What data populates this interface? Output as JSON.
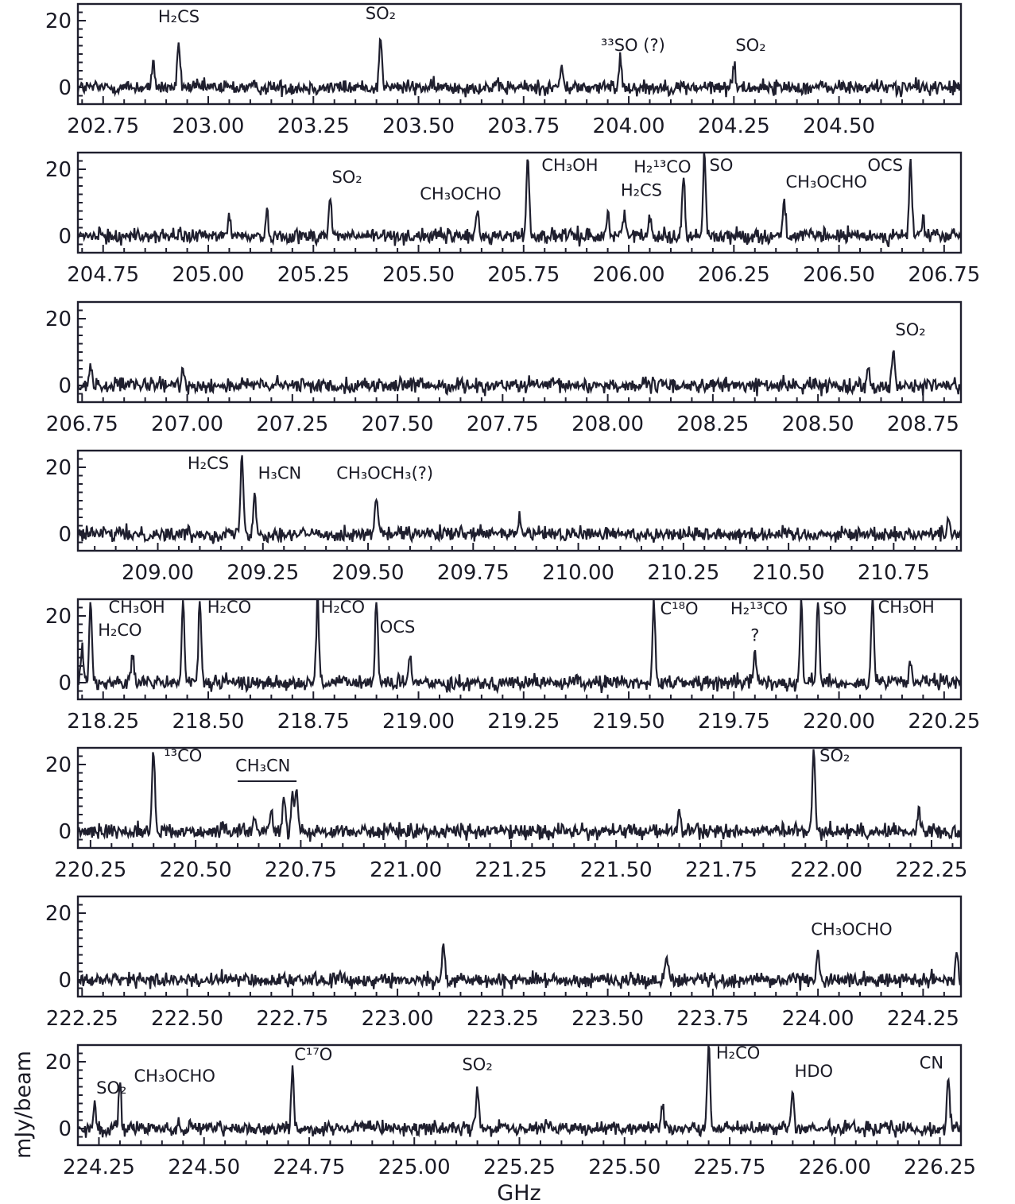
{
  "chart_data": {
    "type": "line",
    "xlabel": "GHz",
    "ylabel": "mJy/beam",
    "line_color": "#1f1f2e",
    "panels": [
      {
        "xlim": [
          202.69,
          204.79
        ],
        "ylim": [
          -5,
          25
        ],
        "xticks": [
          "202.75",
          "203.00",
          "203.25",
          "203.50",
          "203.75",
          "204.00",
          "204.25",
          "204.50"
        ],
        "yticks": [
          "0",
          "20"
        ],
        "peaks": [
          {
            "x": 202.87,
            "y": 7
          },
          {
            "x": 202.93,
            "y": 13.5
          },
          {
            "x": 203.41,
            "y": 15.5
          },
          {
            "x": 203.84,
            "y": 6
          },
          {
            "x": 203.98,
            "y": 9
          },
          {
            "x": 204.25,
            "y": 7
          }
        ],
        "labels": [
          {
            "text": "H₂CS",
            "x": 202.93,
            "y": 19.5
          },
          {
            "text": "SO₂",
            "x": 203.41,
            "y": 20.5
          },
          {
            "text": "³³SO (?)",
            "x": 204.01,
            "y": 11
          },
          {
            "text": "SO₂",
            "x": 204.29,
            "y": 11
          }
        ]
      },
      {
        "xlim": [
          204.69,
          206.79
        ],
        "ylim": [
          -5,
          25
        ],
        "xticks": [
          "204.75",
          "205.00",
          "205.25",
          "205.50",
          "205.75",
          "206.00",
          "206.25",
          "206.50",
          "206.75"
        ],
        "yticks": [
          "0",
          "20"
        ],
        "peaks": [
          {
            "x": 205.05,
            "y": 7
          },
          {
            "x": 205.14,
            "y": 6
          },
          {
            "x": 205.29,
            "y": 12
          },
          {
            "x": 205.64,
            "y": 7
          },
          {
            "x": 205.76,
            "y": 25
          },
          {
            "x": 205.95,
            "y": 7
          },
          {
            "x": 205.99,
            "y": 9
          },
          {
            "x": 206.05,
            "y": 8
          },
          {
            "x": 206.13,
            "y": 18
          },
          {
            "x": 206.18,
            "y": 25
          },
          {
            "x": 206.37,
            "y": 11
          },
          {
            "x": 206.67,
            "y": 23
          },
          {
            "x": 206.7,
            "y": 6
          }
        ],
        "labels": [
          {
            "text": "SO₂",
            "x": 205.33,
            "y": 16
          },
          {
            "text": "CH₃OCHO",
            "x": 205.6,
            "y": 11
          },
          {
            "text": "CH₃OH",
            "x": 205.86,
            "y": 19.5
          },
          {
            "text": "H₂¹³CO",
            "x": 206.08,
            "y": 19
          },
          {
            "text": "H₂CS",
            "x": 206.03,
            "y": 12
          },
          {
            "text": "SO",
            "x": 206.22,
            "y": 19.5
          },
          {
            "text": "CH₃OCHO",
            "x": 206.47,
            "y": 14.5
          },
          {
            "text": "OCS",
            "x": 206.61,
            "y": 19.5
          }
        ]
      },
      {
        "xlim": [
          206.74,
          208.84
        ],
        "ylim": [
          -5,
          25
        ],
        "xticks": [
          "206.75",
          "207.00",
          "207.25",
          "207.50",
          "207.75",
          "208.00",
          "208.25",
          "208.50",
          "208.75"
        ],
        "yticks": [
          "0",
          "20"
        ],
        "peaks": [
          {
            "x": 206.77,
            "y": 6
          },
          {
            "x": 206.99,
            "y": 5
          },
          {
            "x": 208.68,
            "y": 11
          },
          {
            "x": 208.62,
            "y": 5
          }
        ],
        "labels": [
          {
            "text": "SO₂",
            "x": 208.72,
            "y": 15
          }
        ]
      },
      {
        "xlim": [
          208.81,
          210.91
        ],
        "ylim": [
          -5,
          25
        ],
        "xticks": [
          "209.00",
          "209.25",
          "209.50",
          "209.75",
          "210.00",
          "210.25",
          "210.50",
          "210.75"
        ],
        "yticks": [
          "0",
          "20"
        ],
        "peaks": [
          {
            "x": 209.2,
            "y": 25
          },
          {
            "x": 209.23,
            "y": 13.5
          },
          {
            "x": 209.52,
            "y": 12.5
          },
          {
            "x": 209.86,
            "y": 5
          },
          {
            "x": 210.88,
            "y": 6
          }
        ],
        "labels": [
          {
            "text": "H₂CS",
            "x": 209.12,
            "y": 19.5
          },
          {
            "text": "H₃CN",
            "x": 209.29,
            "y": 16.5
          },
          {
            "text": "CH₃OCH₃(?)",
            "x": 209.54,
            "y": 16.5
          }
        ]
      },
      {
        "xlim": [
          218.19,
          220.29
        ],
        "ylim": [
          -5,
          25
        ],
        "xticks": [
          "218.25",
          "218.50",
          "218.75",
          "219.00",
          "219.25",
          "219.50",
          "219.75",
          "220.00",
          "220.25"
        ],
        "yticks": [
          "0",
          "20"
        ],
        "peaks": [
          {
            "x": 218.2,
            "y": 10
          },
          {
            "x": 218.22,
            "y": 25
          },
          {
            "x": 218.32,
            "y": 8
          },
          {
            "x": 218.44,
            "y": 25
          },
          {
            "x": 218.48,
            "y": 25
          },
          {
            "x": 218.76,
            "y": 25
          },
          {
            "x": 218.9,
            "y": 25
          },
          {
            "x": 218.98,
            "y": 7
          },
          {
            "x": 219.56,
            "y": 25
          },
          {
            "x": 219.8,
            "y": 10.5
          },
          {
            "x": 219.91,
            "y": 25
          },
          {
            "x": 219.95,
            "y": 25
          },
          {
            "x": 220.08,
            "y": 25
          },
          {
            "x": 220.17,
            "y": 7
          }
        ],
        "labels": [
          {
            "text": "CH₃OH",
            "x": 218.33,
            "y": 21
          },
          {
            "text": "H₂CO",
            "x": 218.29,
            "y": 14
          },
          {
            "text": "H₂CO",
            "x": 218.55,
            "y": 21
          },
          {
            "text": "H₂CO",
            "x": 218.82,
            "y": 21
          },
          {
            "text": "OCS",
            "x": 218.95,
            "y": 15
          },
          {
            "text": "C¹⁸O",
            "x": 219.62,
            "y": 20.5
          },
          {
            "text": "H₂¹³CO",
            "x": 219.81,
            "y": 20.5
          },
          {
            "text": "?",
            "x": 219.8,
            "y": 12.5
          },
          {
            "text": "SO",
            "x": 219.99,
            "y": 20.5
          },
          {
            "text": "CH₃OH",
            "x": 220.16,
            "y": 21
          }
        ]
      },
      {
        "xlim": [
          220.22,
          222.32
        ],
        "ylim": [
          -5,
          25
        ],
        "xticks": [
          "220.25",
          "220.50",
          "220.75",
          "221.00",
          "221.25",
          "221.50",
          "221.75",
          "222.00",
          "222.25"
        ],
        "yticks": [
          "0",
          "20"
        ],
        "peaks": [
          {
            "x": 220.4,
            "y": 25
          },
          {
            "x": 220.64,
            "y": 5
          },
          {
            "x": 220.68,
            "y": 8
          },
          {
            "x": 220.71,
            "y": 10
          },
          {
            "x": 220.73,
            "y": 11.5
          },
          {
            "x": 220.74,
            "y": 13.5
          },
          {
            "x": 221.65,
            "y": 6
          },
          {
            "x": 221.97,
            "y": 25
          },
          {
            "x": 222.22,
            "y": 7
          }
        ],
        "labels": [
          {
            "text": "¹³CO",
            "x": 220.47,
            "y": 21
          },
          {
            "text": "CH₃CN",
            "x": 220.66,
            "y": 18
          },
          {
            "text": "SO₂",
            "x": 222.02,
            "y": 21
          }
        ],
        "brackets": [
          {
            "x0": 220.6,
            "x1": 220.74,
            "y": 15
          }
        ]
      },
      {
        "xlim": [
          222.24,
          224.34
        ],
        "ylim": [
          -5,
          25
        ],
        "xticks": [
          "222.25",
          "222.50",
          "222.75",
          "223.00",
          "223.25",
          "223.50",
          "223.75",
          "224.00",
          "224.25"
        ],
        "yticks": [
          "0",
          "20"
        ],
        "peaks": [
          {
            "x": 223.11,
            "y": 10
          },
          {
            "x": 223.64,
            "y": 7
          },
          {
            "x": 224.0,
            "y": 9
          },
          {
            "x": 224.33,
            "y": 8
          }
        ],
        "labels": [
          {
            "text": "CH₃OCHO",
            "x": 224.08,
            "y": 13.5
          }
        ]
      },
      {
        "xlim": [
          224.2,
          226.3
        ],
        "ylim": [
          -5,
          25
        ],
        "xticks": [
          "224.25",
          "224.50",
          "224.75",
          "225.00",
          "225.25",
          "225.50",
          "225.75",
          "226.00",
          "226.25"
        ],
        "yticks": [
          "0",
          "20"
        ],
        "peaks": [
          {
            "x": 224.24,
            "y": 7
          },
          {
            "x": 224.3,
            "y": 13
          },
          {
            "x": 224.71,
            "y": 18
          },
          {
            "x": 225.15,
            "y": 14
          },
          {
            "x": 225.59,
            "y": 8
          },
          {
            "x": 225.7,
            "y": 25
          },
          {
            "x": 225.9,
            "y": 11
          },
          {
            "x": 226.27,
            "y": 15.5
          }
        ],
        "labels": [
          {
            "text": "SO₂",
            "x": 224.28,
            "y": 10.5
          },
          {
            "text": "CH₃OCHO",
            "x": 224.43,
            "y": 14
          },
          {
            "text": "C¹⁷O",
            "x": 224.76,
            "y": 20.5
          },
          {
            "text": "SO₂",
            "x": 225.15,
            "y": 17.5
          },
          {
            "text": "H₂CO",
            "x": 225.77,
            "y": 21
          },
          {
            "text": "HDO",
            "x": 225.95,
            "y": 15.5
          },
          {
            "text": "CN",
            "x": 226.23,
            "y": 18
          }
        ]
      }
    ]
  }
}
